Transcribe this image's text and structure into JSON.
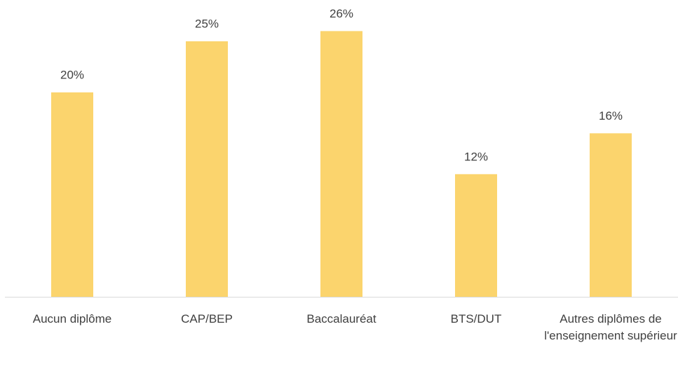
{
  "chart_data": {
    "type": "bar",
    "categories": [
      "Aucun diplôme",
      "CAP/BEP",
      "Baccalauréat",
      "BTS/DUT",
      "Autres diplômes de l'enseignement supérieur"
    ],
    "values": [
      20,
      25,
      26,
      12,
      16
    ],
    "value_labels": [
      "20%",
      "25%",
      "26%",
      "12%",
      "16%"
    ],
    "color": "#fbd46d"
  }
}
